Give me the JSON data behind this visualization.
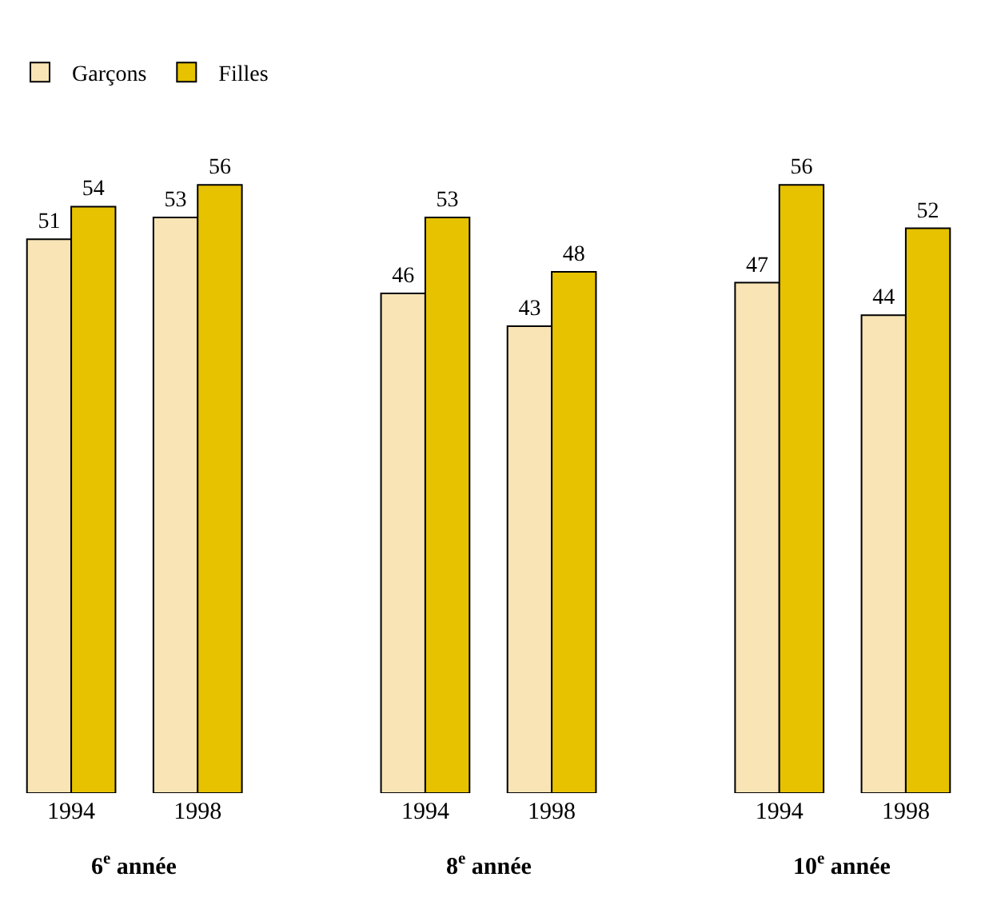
{
  "chart_data": {
    "type": "bar",
    "categories": [
      "1994",
      "1998",
      "1994",
      "1998",
      "1994",
      "1998"
    ],
    "series": [
      {
        "name": "Garçons",
        "color": "#f8e4b4",
        "values": [
          51,
          53,
          46,
          43,
          47,
          44
        ]
      },
      {
        "name": "Filles",
        "color": "#e6c200",
        "values": [
          54,
          56,
          53,
          48,
          56,
          52
        ]
      }
    ],
    "annotations": [
      "6$^{e}$ année",
      "8$^{e}$ année",
      "10$^{e}$ année"
    ],
    "data_labels": true,
    "legend": "top left"
  }
}
